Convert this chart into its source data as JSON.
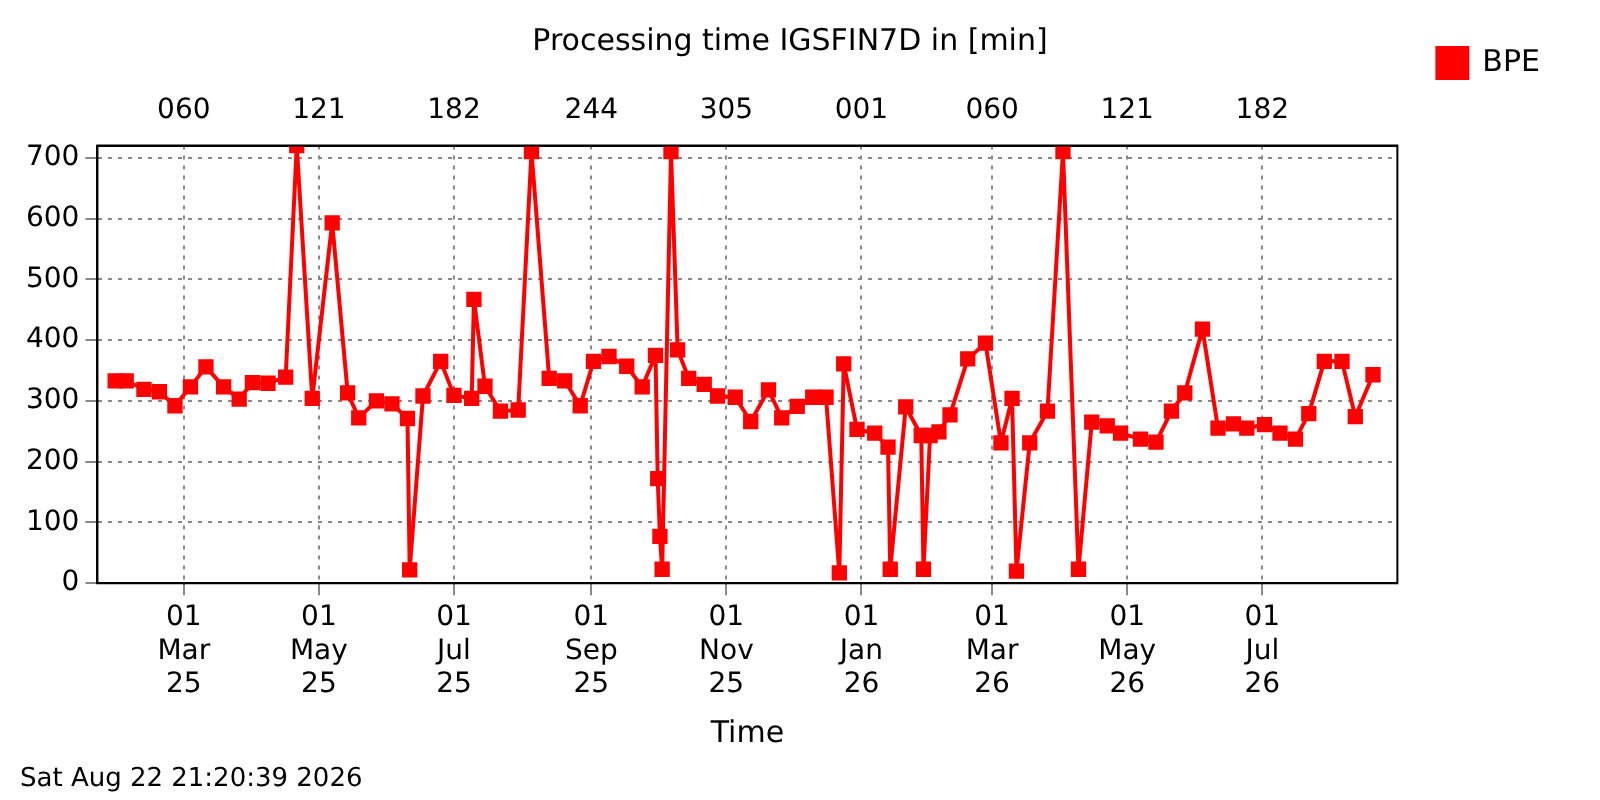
{
  "chart_data": {
    "type": "line",
    "title": "Processing time IGSFIN7D in [min]",
    "xlabel": "Time",
    "x": [
      "2025-01-29",
      "2025-02-03",
      "2025-02-11",
      "2025-02-18",
      "2025-02-25",
      "2025-03-04",
      "2025-03-11",
      "2025-03-19",
      "2025-03-26",
      "2025-04-01",
      "2025-04-08",
      "2025-04-16",
      "2025-04-21",
      "2025-04-28",
      "2025-05-07",
      "2025-05-14",
      "2025-05-19",
      "2025-05-27",
      "2025-06-03",
      "2025-06-10",
      "2025-06-11",
      "2025-06-17",
      "2025-06-25",
      "2025-07-01",
      "2025-07-09",
      "2025-07-10",
      "2025-07-15",
      "2025-07-22",
      "2025-07-30",
      "2025-08-05",
      "2025-08-13",
      "2025-08-20",
      "2025-08-27",
      "2025-09-02",
      "2025-09-09",
      "2025-09-17",
      "2025-09-24",
      "2025-09-30",
      "2025-10-01",
      "2025-10-02",
      "2025-10-03",
      "2025-10-07",
      "2025-10-10",
      "2025-10-15",
      "2025-10-22",
      "2025-10-28",
      "2025-11-05",
      "2025-11-12",
      "2025-11-20",
      "2025-11-26",
      "2025-12-03",
      "2025-12-10",
      "2025-12-16",
      "2025-12-22",
      "2025-12-24",
      "2025-12-30",
      "2026-01-07",
      "2026-01-13",
      "2026-01-14",
      "2026-01-21",
      "2026-01-28",
      "2026-01-29",
      "2026-02-01",
      "2026-02-05",
      "2026-02-10",
      "2026-02-18",
      "2026-02-26",
      "2026-03-05",
      "2026-03-10",
      "2026-03-12",
      "2026-03-18",
      "2026-03-26",
      "2026-04-02",
      "2026-04-09",
      "2026-04-15",
      "2026-04-22",
      "2026-04-28",
      "2026-05-07",
      "2026-05-14",
      "2026-05-21",
      "2026-05-27",
      "2026-06-04",
      "2026-06-11",
      "2026-06-18",
      "2026-06-24",
      "2026-07-02",
      "2026-07-09",
      "2026-07-16",
      "2026-07-22",
      "2026-07-29",
      "2026-08-06",
      "2026-08-12",
      "2026-08-20"
    ],
    "series": [
      {
        "name": "BPE",
        "color": "#ff0000",
        "values": [
          333,
          333,
          319,
          315,
          292,
          323,
          356,
          323,
          303,
          330,
          329,
          339,
          720,
          304,
          593,
          313,
          272,
          300,
          295,
          271,
          22,
          308,
          365,
          309,
          304,
          467,
          324,
          283,
          285,
          710,
          337,
          333,
          292,
          365,
          373,
          357,
          323,
          375,
          172,
          77,
          23,
          710,
          384,
          337,
          327,
          308,
          306,
          266,
          318,
          272,
          291,
          306,
          306,
          17,
          361,
          253,
          247,
          224,
          23,
          290,
          243,
          23,
          243,
          249,
          277,
          369,
          395,
          231,
          304,
          20,
          231,
          283,
          710,
          23,
          265,
          259,
          247,
          237,
          232,
          283,
          313,
          418,
          255,
          262,
          255,
          261,
          247,
          237,
          279,
          365,
          365,
          274,
          343
        ]
      }
    ],
    "xlim": [
      "2025-01-21",
      "2026-08-31"
    ],
    "xticks": [
      {
        "value": "2025-03-01",
        "label": "01\nMar\n25"
      },
      {
        "value": "2025-05-01",
        "label": "01\nMay\n25"
      },
      {
        "value": "2025-07-01",
        "label": "01\nJul\n25"
      },
      {
        "value": "2025-09-01",
        "label": "01\nSep\n25"
      },
      {
        "value": "2025-11-01",
        "label": "01\nNov\n25"
      },
      {
        "value": "2026-01-01",
        "label": "01\nJan\n26"
      },
      {
        "value": "2026-03-01",
        "label": "01\nMar\n26"
      },
      {
        "value": "2026-05-01",
        "label": "01\nMay\n26"
      },
      {
        "value": "2026-07-01",
        "label": "01\nJul\n26"
      }
    ],
    "x2lim": [
      "2025-01-21",
      "2026-08-31"
    ],
    "x2ticks": [
      {
        "value": "2025-03-01",
        "label": "060"
      },
      {
        "value": "2025-05-01",
        "label": "121"
      },
      {
        "value": "2025-07-01",
        "label": "182"
      },
      {
        "value": "2025-09-01",
        "label": "244"
      },
      {
        "value": "2025-11-01",
        "label": "305"
      },
      {
        "value": "2026-01-01",
        "label": "001"
      },
      {
        "value": "2026-03-01",
        "label": "060"
      },
      {
        "value": "2026-05-01",
        "label": "121"
      },
      {
        "value": "2026-07-01",
        "label": "182"
      }
    ],
    "ylim": [
      0,
      720
    ],
    "yticks": [
      0,
      100,
      200,
      300,
      400,
      500,
      600,
      700
    ],
    "grid": true,
    "legend": "top right",
    "marker": "square",
    "line_style": "solid",
    "annotations": [
      "Sat Aug 22 21:20:39 2026"
    ]
  }
}
